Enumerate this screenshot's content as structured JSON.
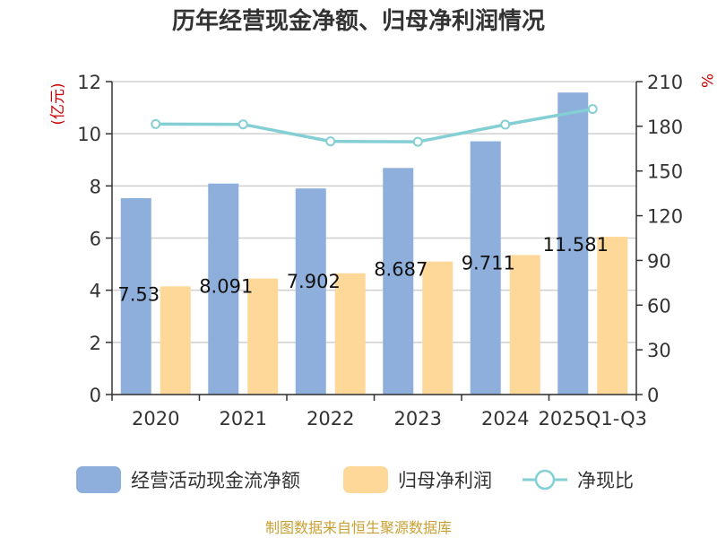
{
  "chart_data": {
    "type": "bar",
    "title": "历年经营现金净额、归母净利润情况",
    "categories": [
      "2020",
      "2021",
      "2022",
      "2023",
      "2024",
      "2025Q1-Q3"
    ],
    "series": [
      {
        "name": "经营活动现金流净额",
        "type": "bar",
        "axis": "left",
        "color": "#8eaedb",
        "values": [
          7.53,
          8.091,
          7.902,
          8.687,
          9.711,
          11.581
        ]
      },
      {
        "name": "归母净利润",
        "type": "bar",
        "axis": "left",
        "color": "#fed899",
        "values": [
          4.15,
          4.45,
          4.65,
          5.1,
          5.35,
          6.05
        ]
      },
      {
        "name": "净现比",
        "type": "line",
        "axis": "right",
        "color": "#84cfd3",
        "values": [
          181.5,
          181.3,
          169.9,
          169.6,
          181.1,
          191.6
        ]
      }
    ],
    "data_labels": [
      "7.53",
      "8.091",
      "7.902",
      "8.687",
      "9.711",
      "11.581"
    ],
    "y_left": {
      "unit": "(亿元)",
      "min": 0,
      "max": 12,
      "ticks": [
        "0",
        "2",
        "4",
        "6",
        "8",
        "10",
        "12"
      ]
    },
    "y_right": {
      "unit": "%",
      "min": 0,
      "max": 210,
      "ticks": [
        "0",
        "30",
        "60",
        "90",
        "120",
        "150",
        "180",
        "210"
      ]
    },
    "grid": true,
    "legend_position": "bottom"
  },
  "colors": {
    "left_unit": "#cc0000",
    "right_unit": "#cc0000",
    "source": "#c8a033"
  },
  "source": "制图数据来自恒生聚源数据库"
}
